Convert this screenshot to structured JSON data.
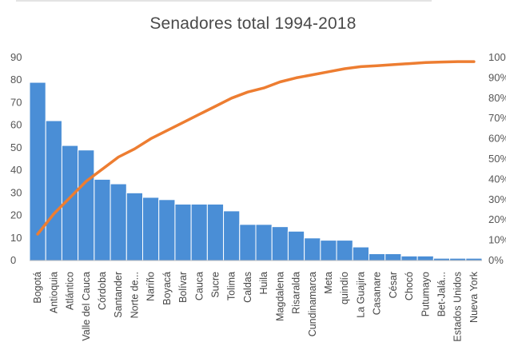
{
  "chart_data": {
    "type": "bar",
    "title": "Senadores total 1994-2018",
    "categories": [
      "Bogotá",
      "Antioquia",
      "Atlántico",
      "Valle del Cauca",
      "Córdoba",
      "Santander",
      "Norte de...",
      "Nariño",
      "Boyacá",
      "Bolívar",
      "Cauca",
      "Sucre",
      "Tolima",
      "Caldas",
      "Huila",
      "Magdalena",
      "Risaralda",
      "Cundinamarca",
      "Meta",
      "quindío",
      "La Guajira",
      "Casanare",
      "César",
      "Chocó",
      "Putumayo",
      "Bet-Jalá...",
      "Estados Unidos",
      "Nueva York"
    ],
    "series": [
      {
        "type": "bar",
        "values": [
          79,
          62,
          51,
          49,
          36,
          34,
          30,
          28,
          27,
          25,
          25,
          25,
          22,
          16,
          16,
          15,
          13,
          10,
          9,
          9,
          6,
          3,
          3,
          2,
          2,
          1,
          1,
          1
        ]
      },
      {
        "type": "line",
        "axis": "secondary",
        "values": [
          13,
          23,
          31,
          39,
          45,
          51,
          55,
          60,
          64,
          68,
          72,
          76,
          80,
          83,
          85,
          88,
          90,
          91.5,
          93,
          94.5,
          95.5,
          96,
          96.5,
          97,
          97.5,
          97.8,
          98,
          98
        ]
      }
    ],
    "ylim": [
      0,
      90
    ],
    "yticks": [
      "0",
      "10",
      "20",
      "30",
      "40",
      "50",
      "60",
      "70",
      "80",
      "90"
    ],
    "y2lim": [
      0,
      100
    ],
    "y2ticks": [
      "0%",
      "10%",
      "20%",
      "30%",
      "40%",
      "50%",
      "60%",
      "70%",
      "80%",
      "90%",
      "100%"
    ],
    "colors": {
      "bar": "#4a8ed6",
      "bar_edge": "#ffffff",
      "line": "#ed7d31",
      "axis": "#bfbfbf"
    },
    "grid": false
  }
}
